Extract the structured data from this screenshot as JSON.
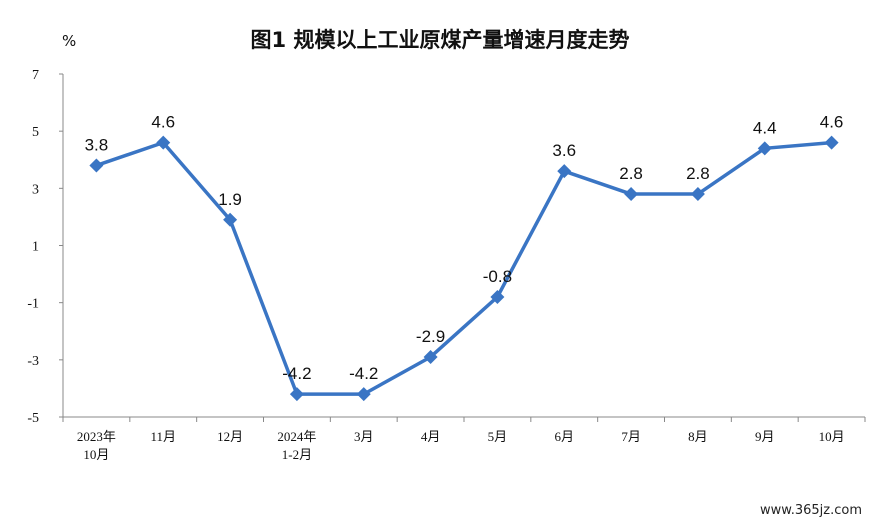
{
  "chart_data": {
    "type": "line",
    "title": "图1 规模以上工业原煤产量增速月度走势",
    "ylabel": "%",
    "ylim": [
      -5,
      7
    ],
    "yticks": [
      7,
      5,
      3,
      1,
      -1,
      -3,
      -5
    ],
    "grid": false,
    "categories": [
      [
        "2023年",
        "10月"
      ],
      [
        "11月"
      ],
      [
        "12月"
      ],
      [
        "2024年",
        "1-2月"
      ],
      [
        "3月"
      ],
      [
        "4月"
      ],
      [
        "5月"
      ],
      [
        "6月"
      ],
      [
        "7月"
      ],
      [
        "8月"
      ],
      [
        "9月"
      ],
      [
        "10月"
      ]
    ],
    "series": [
      {
        "values": [
          3.8,
          4.6,
          1.9,
          -4.2,
          -4.2,
          -2.9,
          -0.8,
          3.6,
          2.8,
          2.8,
          4.4,
          4.6
        ],
        "color": "#3A75C4"
      }
    ]
  },
  "watermark": "www.365jz.com"
}
